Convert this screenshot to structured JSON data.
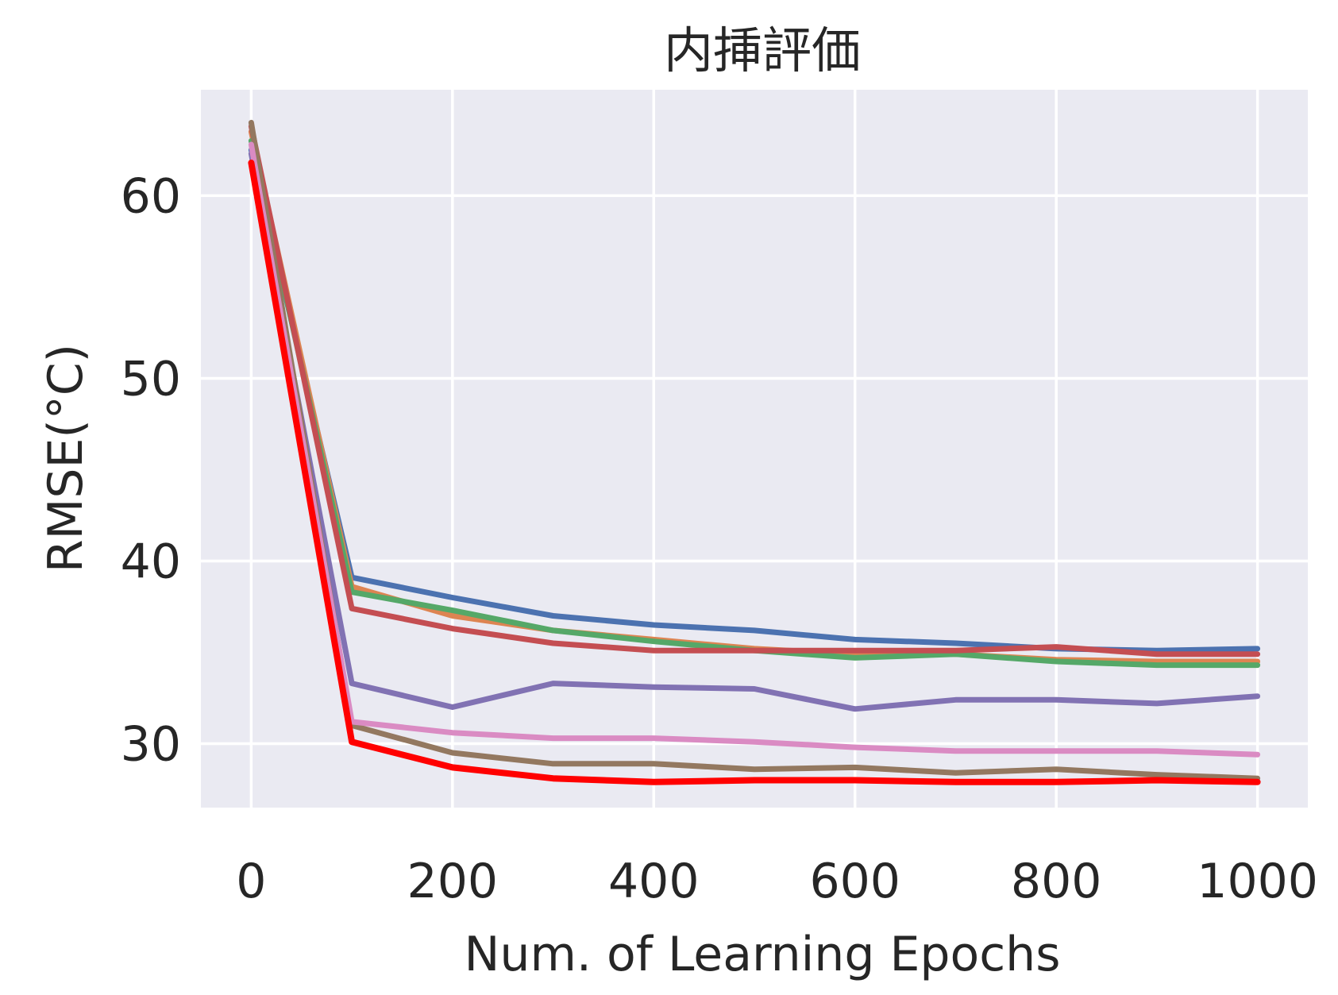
{
  "chart_data": {
    "type": "line",
    "title": "内挿評価",
    "xlabel": "Num. of Learning Epochs",
    "ylabel": "RMSE(°C)",
    "xlim": [
      -50,
      1050
    ],
    "ylim": [
      26.5,
      65.8
    ],
    "xticks": [
      0,
      200,
      400,
      600,
      800,
      1000
    ],
    "yticks": [
      30,
      40,
      50,
      60
    ],
    "grid": true,
    "background": "#eaeaf2",
    "grid_color": "#ffffff",
    "x": [
      0,
      100,
      200,
      300,
      400,
      500,
      600,
      700,
      800,
      900,
      1000
    ],
    "series": [
      {
        "color": "#4c72b0",
        "values": [
          62.5,
          39.1,
          38.0,
          37.0,
          36.5,
          36.2,
          35.7,
          35.5,
          35.2,
          35.1,
          35.2
        ]
      },
      {
        "color": "#dd8452",
        "values": [
          63.5,
          38.6,
          37.0,
          36.2,
          35.7,
          35.2,
          34.9,
          34.9,
          34.6,
          34.5,
          34.5
        ]
      },
      {
        "color": "#55a868",
        "values": [
          63.0,
          38.3,
          37.3,
          36.2,
          35.6,
          35.1,
          34.7,
          34.9,
          34.5,
          34.3,
          34.3
        ]
      },
      {
        "color": "#c44e52",
        "values": [
          63.8,
          37.4,
          36.3,
          35.5,
          35.1,
          35.1,
          35.1,
          35.1,
          35.3,
          34.9,
          34.9
        ]
      },
      {
        "color": "#8172b3",
        "values": [
          62.3,
          33.3,
          32.0,
          33.3,
          33.1,
          33.0,
          31.9,
          32.4,
          32.4,
          32.2,
          32.6
        ]
      },
      {
        "color": "#937860",
        "values": [
          64.0,
          31.0,
          29.5,
          28.9,
          28.9,
          28.6,
          28.7,
          28.4,
          28.6,
          28.3,
          28.1
        ]
      },
      {
        "color": "#da8bc3",
        "values": [
          62.8,
          31.2,
          30.6,
          30.3,
          30.3,
          30.1,
          29.8,
          29.6,
          29.6,
          29.6,
          29.4
        ]
      },
      {
        "color": "#ff0000",
        "values": [
          61.8,
          30.1,
          28.7,
          28.1,
          27.9,
          28.0,
          28.0,
          27.9,
          27.9,
          28.0,
          27.9
        ]
      }
    ]
  }
}
